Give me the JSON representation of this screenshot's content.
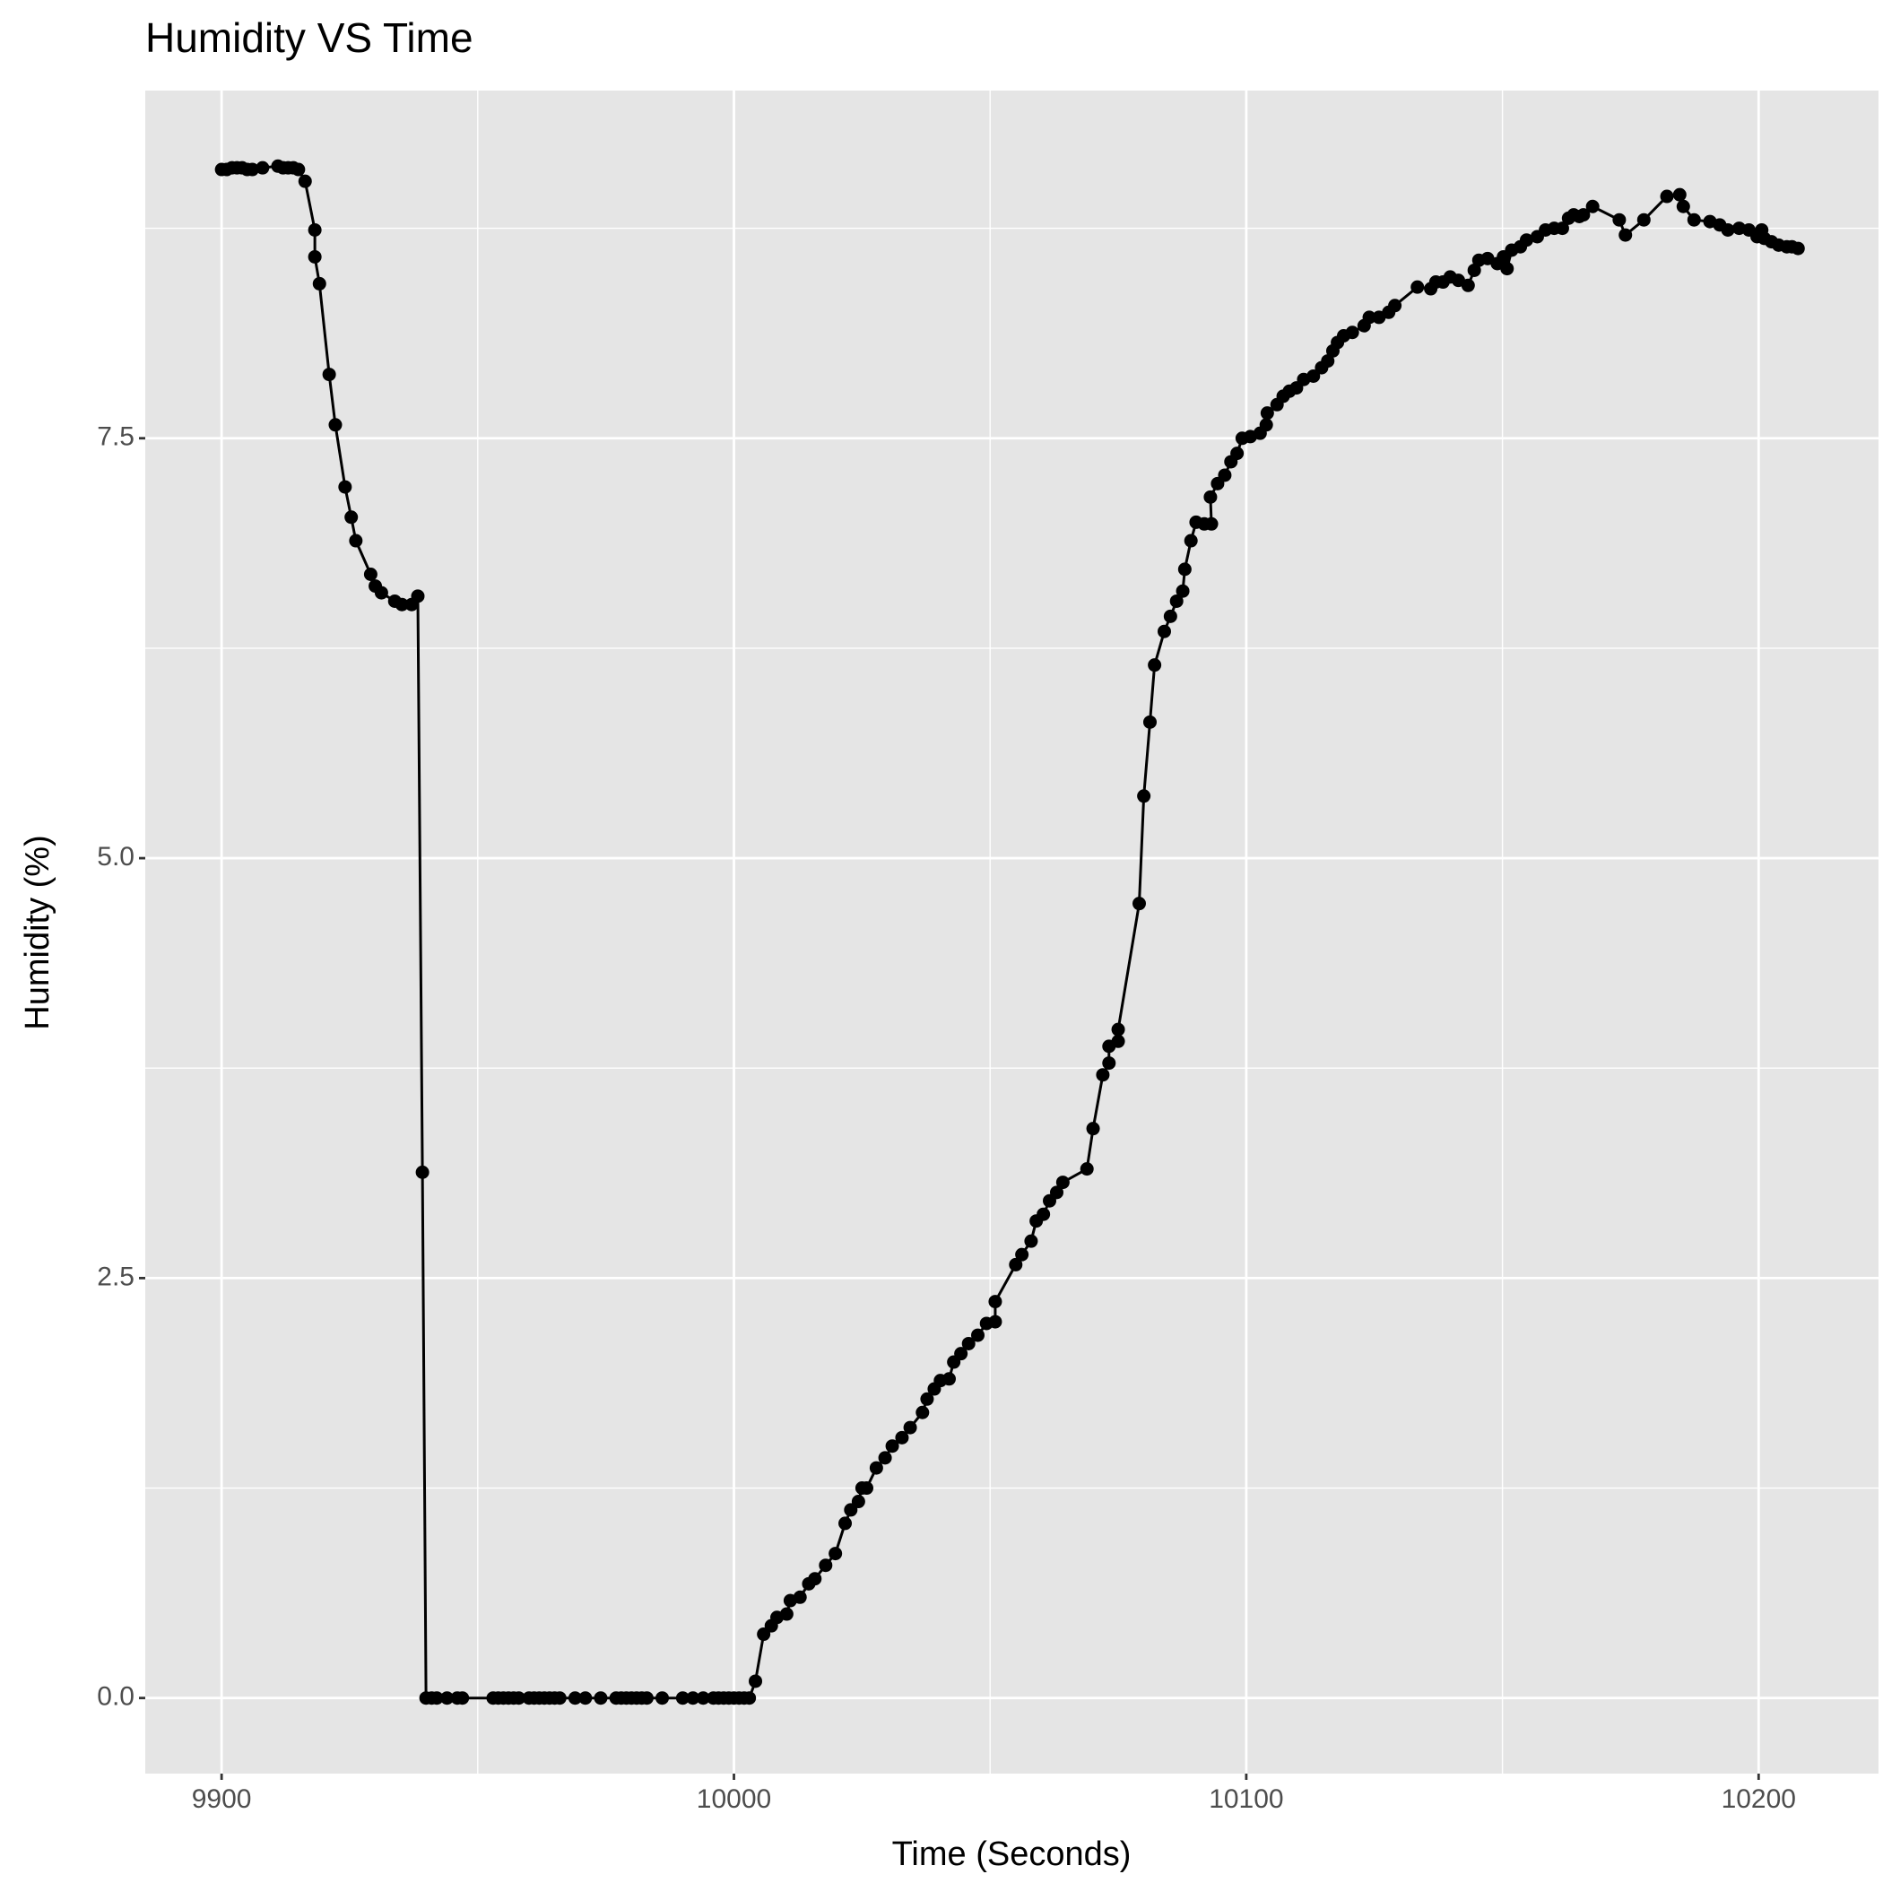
{
  "chart_data": {
    "type": "line",
    "title": "Humidity VS Time",
    "x_label": "Time (Seconds)",
    "y_label": "Humidity (%)",
    "color": "#000000",
    "grid": true,
    "markers": true,
    "xlim": [
      9885.1,
      10223.4
    ],
    "ylim": [
      -0.45,
      9.57
    ],
    "xticks": [
      9900,
      10000,
      10100,
      10200
    ],
    "yticks": [
      {
        "value": 0,
        "label": "0.0"
      },
      {
        "value": 2.5,
        "label": "2.5"
      },
      {
        "value": 5,
        "label": "5.0"
      },
      {
        "value": 7.5,
        "label": "7.5"
      }
    ],
    "x": [
      9900,
      9901,
      9902,
      9903,
      9904,
      9905,
      9906,
      9908,
      9911,
      9912,
      9913,
      9914,
      9915,
      9916.3,
      9918.2,
      9918.2,
      9919.1,
      9921,
      9922.2,
      9924.1,
      9925.3,
      9926.2,
      9929.1,
      9930,
      9931.2,
      9933.8,
      9935.2,
      9937.1,
      9938.3,
      9939.2,
      9939.9,
      9941,
      9942,
      9944,
      9946,
      9947,
      9953,
      9954,
      9955,
      9956,
      9957,
      9958,
      9960,
      9961,
      9962,
      9963,
      9964,
      9965,
      9966,
      9969,
      9971,
      9974,
      9977,
      9978,
      9979,
      9980,
      9981,
      9982,
      9983,
      9986,
      9990,
      9992,
      9994,
      9996,
      9997,
      9998,
      9999,
      10000,
      10001,
      10002,
      10003,
      10004.2,
      10005.8,
      10007.3,
      10008.4,
      10010.3,
      10011,
      10012.9,
      10014.6,
      10015.8,
      10017.9,
      10019.8,
      10021.7,
      10022.8,
      10024.3,
      10025,
      10025.9,
      10027.8,
      10029.5,
      10030.9,
      10032.8,
      10034.4,
      10036.8,
      10037.7,
      10039.1,
      10040.3,
      10042,
      10042.9,
      10044.3,
      10045.8,
      10047.6,
      10049.3,
      10051,
      10051,
      10055,
      10056.2,
      10058,
      10059,
      10060.4,
      10061.6,
      10063,
      10064.2,
      10068.9,
      10070.1,
      10072,
      10073.2,
      10073.2,
      10075,
      10075,
      10079.1,
      10080,
      10081.2,
      10082.1,
      10084,
      10085.2,
      10086.4,
      10087.6,
      10088,
      10089.2,
      10090.2,
      10091.8,
      10093.2,
      10093,
      10094.4,
      10095.8,
      10097,
      10098.2,
      10099.2,
      10100.8,
      10102.7,
      10103.9,
      10104.1,
      10106,
      10107.2,
      10108.4,
      10109.8,
      10111.2,
      10113.1,
      10114.7,
      10115.9,
      10116.9,
      10117.8,
      10119,
      10120.7,
      10123,
      10124,
      10125.9,
      10127.8,
      10129,
      10133.4,
      10136,
      10137,
      10138.4,
      10139.8,
      10141.4,
      10143.3,
      10144.5,
      10145.4,
      10147.1,
      10149,
      10150.2,
      10150.9,
      10151.8,
      10153.5,
      10154.7,
      10156.8,
      10158.4,
      10160.1,
      10161.7,
      10162.9,
      10163.9,
      10165,
      10165.8,
      10167.6,
      10172.8,
      10174,
      10177.6,
      10182.1,
      10184.6,
      10185.3,
      10187.4,
      10190.5,
      10192.4,
      10194,
      10196.2,
      10198.1,
      10199.7,
      10200.6,
      10201.1,
      10202.5,
      10203.9,
      10205.5,
      10206.5,
      10207.7
    ],
    "values": [
      9.1,
      9.1,
      9.11,
      9.11,
      9.11,
      9.1,
      9.1,
      9.11,
      9.12,
      9.11,
      9.11,
      9.11,
      9.1,
      9.03,
      8.74,
      8.58,
      8.42,
      7.88,
      7.58,
      7.21,
      7.03,
      6.89,
      6.69,
      6.62,
      6.58,
      6.53,
      6.51,
      6.51,
      6.56,
      3.13,
      0,
      0,
      0,
      0,
      0,
      0,
      0,
      0,
      0,
      0,
      0,
      0,
      0,
      0,
      0,
      0,
      0,
      0,
      0,
      0,
      0,
      0,
      0,
      0,
      0,
      0,
      0,
      0,
      0,
      0,
      0,
      0,
      0,
      0,
      0,
      0,
      0,
      0,
      0,
      0,
      0,
      0.1,
      0.38,
      0.43,
      0.48,
      0.5,
      0.58,
      0.6,
      0.68,
      0.71,
      0.79,
      0.86,
      1.04,
      1.12,
      1.17,
      1.25,
      1.25,
      1.37,
      1.43,
      1.5,
      1.55,
      1.61,
      1.7,
      1.78,
      1.84,
      1.89,
      1.9,
      2.0,
      2.05,
      2.11,
      2.16,
      2.23,
      2.24,
      2.36,
      2.58,
      2.64,
      2.72,
      2.84,
      2.88,
      2.96,
      3.01,
      3.07,
      3.15,
      3.39,
      3.71,
      3.78,
      3.88,
      3.91,
      3.98,
      4.73,
      5.37,
      5.81,
      6.15,
      6.35,
      6.44,
      6.53,
      6.59,
      6.72,
      6.89,
      7.0,
      6.99,
      6.99,
      7.15,
      7.23,
      7.28,
      7.36,
      7.41,
      7.5,
      7.51,
      7.53,
      7.58,
      7.65,
      7.7,
      7.75,
      7.78,
      7.8,
      7.85,
      7.87,
      7.92,
      7.96,
      8.02,
      8.07,
      8.11,
      8.13,
      8.17,
      8.22,
      8.22,
      8.25,
      8.29,
      8.4,
      8.39,
      8.43,
      8.43,
      8.46,
      8.44,
      8.41,
      8.5,
      8.56,
      8.57,
      8.54,
      8.58,
      8.51,
      8.62,
      8.64,
      8.68,
      8.7,
      8.74,
      8.75,
      8.75,
      8.81,
      8.83,
      8.82,
      8.83,
      8.88,
      8.8,
      8.71,
      8.8,
      8.94,
      8.95,
      8.88,
      8.8,
      8.79,
      8.77,
      8.74,
      8.75,
      8.74,
      8.7,
      8.74,
      8.69,
      8.67,
      8.65,
      8.64,
      8.64,
      8.63
    ]
  }
}
